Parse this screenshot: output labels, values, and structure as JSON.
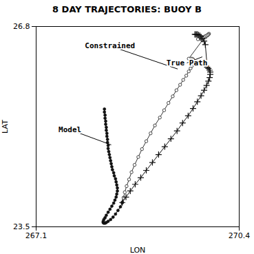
{
  "chart_data": {
    "type": "line",
    "title": "8 DAY TRAJECTORIES: BUOY B",
    "xlabel": "LON",
    "ylabel": "LAT",
    "xlim": [
      267.1,
      270.4
    ],
    "ylim": [
      23.5,
      26.8
    ],
    "xticks": [
      267.1,
      270.4
    ],
    "yticks": [
      23.5,
      26.8
    ],
    "series": [
      {
        "color": "#333333",
        "marker": "open_circle",
        "x": [
          268.5,
          268.52,
          268.54,
          268.57,
          268.61,
          268.65,
          268.7,
          268.76,
          268.82,
          268.89,
          268.96,
          269.03,
          269.11,
          269.18,
          269.25,
          269.32,
          269.38,
          269.44,
          269.49,
          269.54,
          269.58,
          269.61,
          269.63,
          269.65,
          269.66,
          269.66,
          269.65,
          269.63,
          269.61,
          269.58,
          269.8,
          269.85,
          269.88,
          269.9,
          269.91,
          269.9,
          269.89,
          269.87,
          269.85,
          269.83,
          269.81,
          269.79,
          269.77,
          269.75,
          269.73
        ],
        "values": [
          23.9,
          23.98,
          24.07,
          24.17,
          24.28,
          24.4,
          24.52,
          24.65,
          24.78,
          24.91,
          25.04,
          25.17,
          25.3,
          25.42,
          25.54,
          25.65,
          25.75,
          25.84,
          25.92,
          25.99,
          26.06,
          26.11,
          26.15,
          26.19,
          26.22,
          26.24,
          26.26,
          26.27,
          26.27,
          26.27,
          26.57,
          26.62,
          26.65,
          26.67,
          26.68,
          26.67,
          26.66,
          26.65,
          26.64,
          26.63,
          26.62,
          26.61,
          26.6,
          26.6,
          26.59
        ]
      },
      {
        "color": "#111111",
        "marker": "plus",
        "x": [
          268.5,
          268.56,
          268.63,
          268.71,
          268.8,
          268.89,
          268.99,
          269.09,
          269.19,
          269.29,
          269.39,
          269.48,
          269.57,
          269.65,
          269.72,
          269.78,
          269.83,
          269.87,
          269.9,
          269.92,
          269.93,
          269.93,
          269.92,
          269.9,
          269.88,
          269.85,
          269.83,
          269.8,
          269.78,
          269.76,
          269.74,
          269.72,
          269.71,
          269.69,
          269.68
        ],
        "values": [
          23.9,
          23.99,
          24.09,
          24.2,
          24.31,
          24.43,
          24.56,
          24.69,
          24.82,
          24.95,
          25.08,
          25.21,
          25.33,
          25.45,
          25.56,
          25.66,
          25.75,
          25.83,
          25.9,
          25.96,
          26.01,
          26.05,
          26.08,
          26.11,
          26.13,
          26.5,
          26.56,
          26.6,
          26.63,
          26.65,
          26.66,
          26.67,
          26.67,
          26.67,
          26.67
        ]
      },
      {
        "color": "#111111",
        "marker": "circle",
        "x": [
          268.5,
          268.47,
          268.43,
          268.39,
          268.35,
          268.31,
          268.27,
          268.24,
          268.22,
          268.2,
          268.19,
          268.19,
          268.2,
          268.22,
          268.24,
          268.27,
          268.3,
          268.33,
          268.36,
          268.38,
          268.4,
          268.41,
          268.42,
          268.42,
          268.41,
          268.4,
          268.39,
          268.37,
          268.36,
          268.34,
          268.33,
          268.32,
          268.31,
          268.3,
          268.29,
          268.28,
          268.27,
          268.27,
          268.26,
          268.26,
          268.25,
          268.25,
          268.24,
          268.24,
          268.23,
          268.23,
          268.22,
          268.22,
          268.21,
          268.21
        ],
        "values": [
          23.9,
          23.83,
          23.77,
          23.71,
          23.66,
          23.62,
          23.59,
          23.57,
          23.56,
          23.56,
          23.57,
          23.59,
          23.62,
          23.65,
          23.69,
          23.74,
          23.79,
          23.84,
          23.89,
          23.94,
          23.99,
          24.04,
          24.09,
          24.14,
          24.19,
          24.24,
          24.29,
          24.34,
          24.39,
          24.44,
          24.49,
          24.54,
          24.59,
          24.64,
          24.69,
          24.74,
          24.79,
          24.84,
          24.89,
          24.94,
          24.99,
          25.04,
          25.09,
          25.14,
          25.19,
          25.24,
          25.29,
          25.34,
          25.39,
          25.44
        ]
      }
    ],
    "annotations": [
      {
        "text": "Constrained",
        "xy": [
          269.4,
          26.1
        ],
        "xytext": [
          268.3,
          26.48
        ]
      },
      {
        "text": "True Path",
        "xy": [
          269.8,
          26.3
        ],
        "xytext": [
          269.55,
          26.2
        ]
      },
      {
        "text": "Model",
        "xy": [
          268.32,
          24.85
        ],
        "xytext": [
          267.65,
          25.1
        ]
      }
    ]
  }
}
